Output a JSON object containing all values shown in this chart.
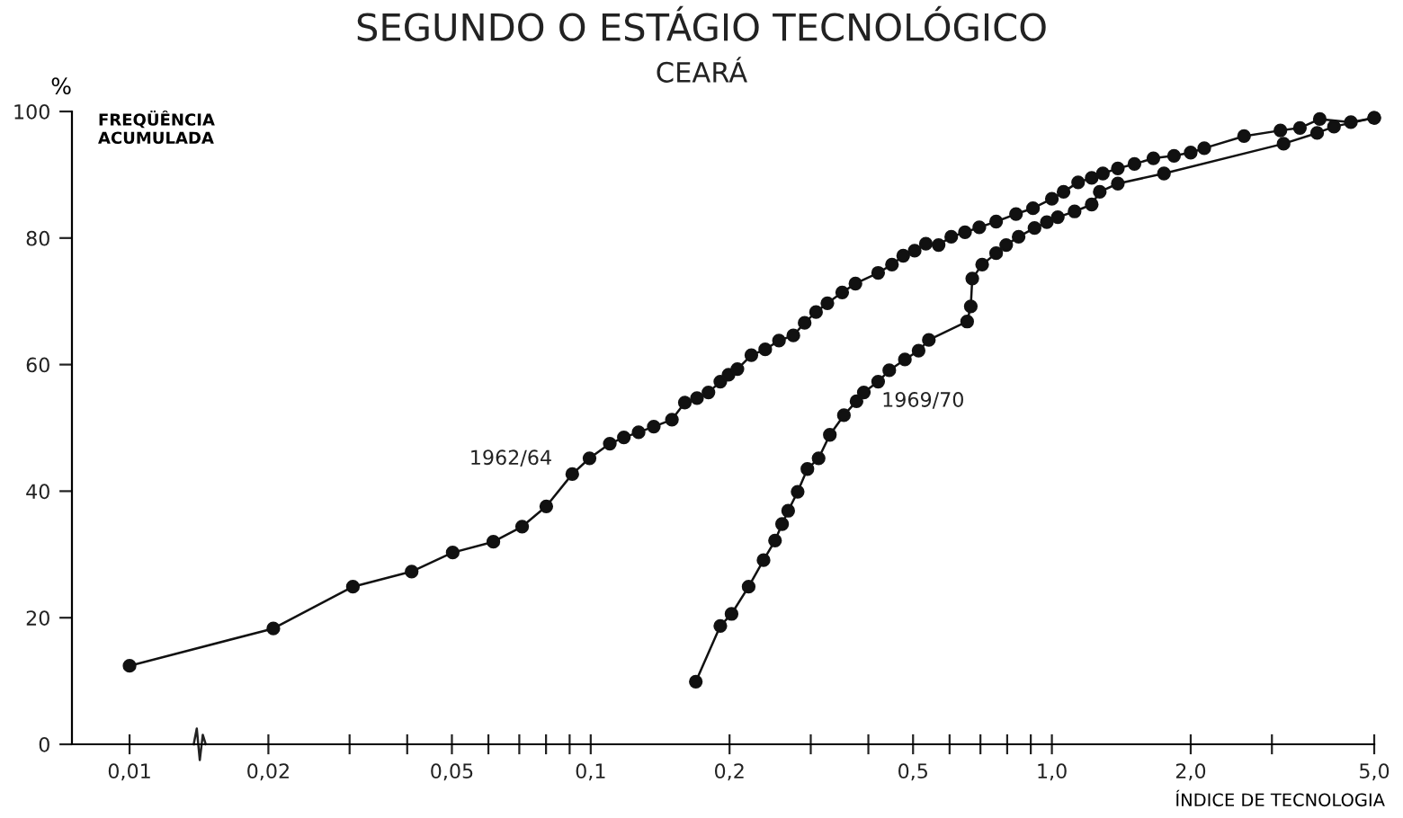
{
  "chart_data": {
    "type": "line",
    "title": "SEGUNDO O ESTÁGIO TECNOLÓGICO",
    "subtitle": "CEARÁ",
    "xlabel": "ÍNDICE DE TECNOLOGIA",
    "ylabel": "%",
    "annotations": [
      "FREQÜÊNCIA\nACUMULADA"
    ],
    "log": "x",
    "xlim": [
      0.0075,
      5.0
    ],
    "ylim": [
      0,
      100
    ],
    "xticks": [
      {
        "value": 0.01,
        "label": "0,01"
      },
      {
        "value": 0.02,
        "label": "0,02"
      },
      {
        "value": 0.03,
        "label": null
      },
      {
        "value": 0.04,
        "label": null
      },
      {
        "value": 0.05,
        "label": "0,05"
      },
      {
        "value": 0.06,
        "label": null
      },
      {
        "value": 0.07,
        "label": null
      },
      {
        "value": 0.08,
        "label": null
      },
      {
        "value": 0.09,
        "label": null
      },
      {
        "value": 0.1,
        "label": "0,1"
      },
      {
        "value": 0.2,
        "label": "0,2"
      },
      {
        "value": 0.3,
        "label": null
      },
      {
        "value": 0.4,
        "label": null
      },
      {
        "value": 0.5,
        "label": "0,5"
      },
      {
        "value": 0.6,
        "label": null
      },
      {
        "value": 0.7,
        "label": null
      },
      {
        "value": 0.8,
        "label": null
      },
      {
        "value": 0.9,
        "label": null
      },
      {
        "value": 1.0,
        "label": "1,0"
      },
      {
        "value": 2.0,
        "label": "2,0"
      },
      {
        "value": 3.0,
        "label": null
      },
      {
        "value": 5.0,
        "label": "5,0"
      }
    ],
    "yticks": [
      0,
      20,
      40,
      60,
      80,
      100
    ],
    "grid": false,
    "legend": false,
    "marker": "circle",
    "line_style": "solid",
    "series": [
      {
        "name": "1962/64",
        "color": "#111111",
        "x": [
          0.01,
          0.0205,
          0.0305,
          0.0409,
          0.0502,
          0.0615,
          0.071,
          0.0801,
          0.0912,
          0.0994,
          0.11,
          0.118,
          0.127,
          0.137,
          0.15,
          0.16,
          0.17,
          0.18,
          0.191,
          0.199,
          0.208,
          0.223,
          0.239,
          0.256,
          0.275,
          0.291,
          0.308,
          0.326,
          0.351,
          0.375,
          0.42,
          0.45,
          0.476,
          0.504,
          0.533,
          0.568,
          0.605,
          0.648,
          0.696,
          0.757,
          0.836,
          0.91,
          1.0,
          1.06,
          1.14,
          1.22,
          1.29,
          1.39,
          1.51,
          1.66,
          1.84,
          2.0,
          2.14,
          2.61,
          3.13,
          3.45,
          3.81,
          4.45,
          5.0
        ],
        "values": [
          12.4,
          18.3,
          24.9,
          27.3,
          30.3,
          32.0,
          34.4,
          37.6,
          42.7,
          45.2,
          47.5,
          48.5,
          49.3,
          50.2,
          51.3,
          54.0,
          54.7,
          55.6,
          57.3,
          58.4,
          59.3,
          61.5,
          62.4,
          63.8,
          64.6,
          66.6,
          68.3,
          69.7,
          71.4,
          72.8,
          74.5,
          75.8,
          77.2,
          78.0,
          79.1,
          78.9,
          80.2,
          80.9,
          81.7,
          82.6,
          83.8,
          84.7,
          86.2,
          87.3,
          88.8,
          89.5,
          90.2,
          91.0,
          91.7,
          92.6,
          93.0,
          93.5,
          94.2,
          96.1,
          97.0,
          97.4,
          98.8,
          98.3,
          99
        ]
      },
      {
        "name": "1969/70",
        "color": "#111111",
        "x": [
          0.169,
          0.191,
          0.202,
          0.22,
          0.237,
          0.251,
          0.26,
          0.268,
          0.281,
          0.295,
          0.312,
          0.33,
          0.354,
          0.377,
          0.391,
          0.42,
          0.444,
          0.48,
          0.514,
          0.541,
          0.655,
          0.667,
          0.672,
          0.706,
          0.757,
          0.796,
          0.847,
          0.917,
          0.975,
          1.03,
          1.12,
          1.22,
          1.27,
          1.39,
          1.75,
          3.18,
          3.76,
          4.09,
          5.0
        ],
        "values": [
          9.9,
          18.7,
          20.6,
          24.9,
          29.1,
          32.2,
          34.8,
          36.9,
          39.9,
          43.5,
          45.2,
          48.9,
          52.0,
          54.2,
          55.6,
          57.3,
          59.1,
          60.8,
          62.2,
          63.9,
          66.8,
          69.2,
          73.6,
          75.8,
          77.6,
          78.9,
          80.2,
          81.6,
          82.5,
          83.3,
          84.2,
          85.3,
          87.3,
          88.6,
          90.2,
          94.9,
          96.6,
          97.6,
          99
        ]
      }
    ]
  }
}
